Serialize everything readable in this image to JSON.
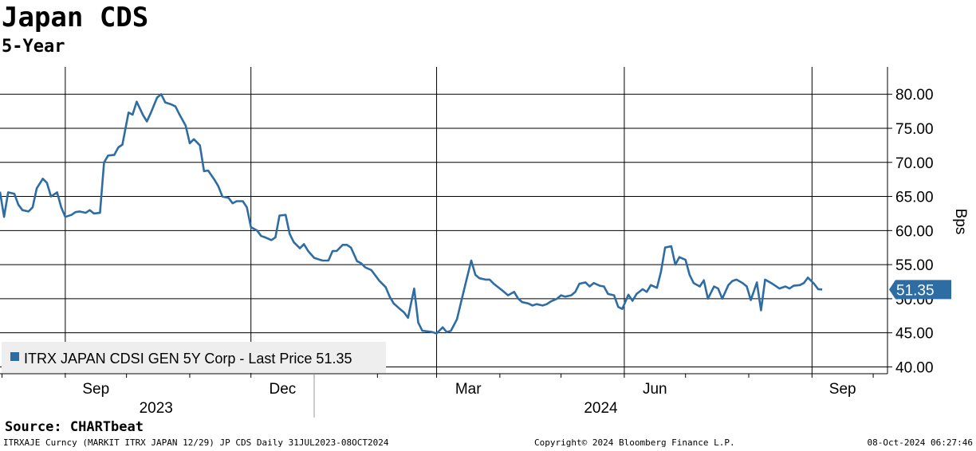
{
  "header": {
    "title": "Japan CDS",
    "subtitle": "5-Year"
  },
  "chart_data": {
    "type": "line",
    "title": "Japan CDS",
    "subtitle": "5-Year",
    "ylabel": "Bps",
    "ylim": [
      39,
      84
    ],
    "yticks": [
      40,
      45,
      50,
      55,
      60,
      65,
      70,
      75,
      80
    ],
    "ytick_labels": [
      "40.00",
      "45.00",
      "50.00",
      "55.00",
      "60.00",
      "65.00",
      "70.00",
      "75.00",
      "80.00"
    ],
    "xlim": [
      "2023-07-31",
      "2024-10-08"
    ],
    "month_ticks": [
      {
        "label": "Sep",
        "date": "2023-09-01"
      },
      {
        "label": "Dec",
        "date": "2023-12-01"
      },
      {
        "label": "Mar",
        "date": "2024-03-01"
      },
      {
        "label": "Jun",
        "date": "2024-06-01"
      },
      {
        "label": "Sep",
        "date": "2024-09-01"
      }
    ],
    "year_labels": [
      {
        "label": "2023",
        "from": "2023-07-31",
        "to": "2023-12-31"
      },
      {
        "label": "2024",
        "from": "2024-01-01",
        "to": "2024-10-08"
      }
    ],
    "grid": true,
    "color": "#2e6ca4",
    "last_price_label": "51.35",
    "legend": {
      "position": "bottom-left",
      "text": "ITRX JAPAN CDSI GEN 5Y Corp - Last Price 51.35"
    },
    "series": [
      {
        "name": "ITRX JAPAN CDSI GEN 5Y Corp",
        "points": [
          [
            "2023-07-31",
            65.7
          ],
          [
            "2023-08-02",
            62.0
          ],
          [
            "2023-08-04",
            65.6
          ],
          [
            "2023-08-07",
            65.4
          ],
          [
            "2023-08-09",
            63.8
          ],
          [
            "2023-08-11",
            63.0
          ],
          [
            "2023-08-14",
            62.8
          ],
          [
            "2023-08-16",
            63.4
          ],
          [
            "2023-08-18",
            66.2
          ],
          [
            "2023-08-21",
            67.6
          ],
          [
            "2023-08-23",
            67.0
          ],
          [
            "2023-08-25",
            65.0
          ],
          [
            "2023-08-28",
            65.6
          ],
          [
            "2023-08-30",
            63.4
          ],
          [
            "2023-09-01",
            62.0
          ],
          [
            "2023-09-04",
            62.3
          ],
          [
            "2023-09-06",
            62.7
          ],
          [
            "2023-09-08",
            62.8
          ],
          [
            "2023-09-11",
            62.6
          ],
          [
            "2023-09-13",
            63.0
          ],
          [
            "2023-09-15",
            62.5
          ],
          [
            "2023-09-18",
            62.6
          ],
          [
            "2023-09-20",
            70.0
          ],
          [
            "2023-09-22",
            71.0
          ],
          [
            "2023-09-25",
            71.1
          ],
          [
            "2023-09-27",
            72.2
          ],
          [
            "2023-09-29",
            72.6
          ],
          [
            "2023-10-02",
            77.3
          ],
          [
            "2023-10-04",
            77.0
          ],
          [
            "2023-10-06",
            78.9
          ],
          [
            "2023-10-09",
            77.0
          ],
          [
            "2023-10-11",
            76.0
          ],
          [
            "2023-10-13",
            77.3
          ],
          [
            "2023-10-16",
            79.5
          ],
          [
            "2023-10-18",
            80.0
          ],
          [
            "2023-10-20",
            78.8
          ],
          [
            "2023-10-23",
            78.5
          ],
          [
            "2023-10-25",
            78.2
          ],
          [
            "2023-10-27",
            77.0
          ],
          [
            "2023-10-30",
            75.4
          ],
          [
            "2023-11-01",
            72.8
          ],
          [
            "2023-11-03",
            73.4
          ],
          [
            "2023-11-06",
            72.5
          ],
          [
            "2023-11-08",
            68.7
          ],
          [
            "2023-11-10",
            68.8
          ],
          [
            "2023-11-13",
            67.5
          ],
          [
            "2023-11-15",
            66.5
          ],
          [
            "2023-11-17",
            65.0
          ],
          [
            "2023-11-20",
            64.8
          ],
          [
            "2023-11-22",
            64.0
          ],
          [
            "2023-11-24",
            64.3
          ],
          [
            "2023-11-27",
            64.3
          ],
          [
            "2023-11-29",
            63.4
          ],
          [
            "2023-12-01",
            60.5
          ],
          [
            "2023-12-04",
            60.0
          ],
          [
            "2023-12-06",
            59.2
          ],
          [
            "2023-12-08",
            59.0
          ],
          [
            "2023-12-11",
            58.6
          ],
          [
            "2023-12-13",
            59.0
          ],
          [
            "2023-12-15",
            62.2
          ],
          [
            "2023-12-18",
            62.3
          ],
          [
            "2023-12-20",
            59.5
          ],
          [
            "2023-12-22",
            58.3
          ],
          [
            "2023-12-25",
            57.4
          ],
          [
            "2023-12-27",
            58.0
          ],
          [
            "2023-12-29",
            57.0
          ],
          [
            "2024-01-01",
            56.0
          ],
          [
            "2024-01-03",
            55.8
          ],
          [
            "2024-01-05",
            55.6
          ],
          [
            "2024-01-08",
            55.6
          ],
          [
            "2024-01-10",
            57.0
          ],
          [
            "2024-01-12",
            57.0
          ],
          [
            "2024-01-15",
            57.9
          ],
          [
            "2024-01-17",
            57.9
          ],
          [
            "2024-01-19",
            57.5
          ],
          [
            "2024-01-22",
            55.5
          ],
          [
            "2024-01-24",
            55.2
          ],
          [
            "2024-01-26",
            54.6
          ],
          [
            "2024-01-29",
            54.2
          ],
          [
            "2024-01-31",
            53.4
          ],
          [
            "2024-02-02",
            52.6
          ],
          [
            "2024-02-05",
            51.7
          ],
          [
            "2024-02-07",
            50.3
          ],
          [
            "2024-02-09",
            49.3
          ],
          [
            "2024-02-12",
            48.5
          ],
          [
            "2024-02-14",
            48.0
          ],
          [
            "2024-02-16",
            47.2
          ],
          [
            "2024-02-19",
            51.5
          ],
          [
            "2024-02-21",
            46.5
          ],
          [
            "2024-02-23",
            45.3
          ],
          [
            "2024-02-26",
            45.2
          ],
          [
            "2024-02-28",
            45.1
          ],
          [
            "2024-03-01",
            44.9
          ],
          [
            "2024-03-04",
            45.8
          ],
          [
            "2024-03-06",
            45.1
          ],
          [
            "2024-03-08",
            45.3
          ],
          [
            "2024-03-11",
            47.0
          ],
          [
            "2024-03-13",
            49.5
          ],
          [
            "2024-03-15",
            52.0
          ],
          [
            "2024-03-18",
            55.6
          ],
          [
            "2024-03-20",
            53.5
          ],
          [
            "2024-03-22",
            53.0
          ],
          [
            "2024-03-25",
            52.8
          ],
          [
            "2024-03-27",
            52.8
          ],
          [
            "2024-03-29",
            52.2
          ],
          [
            "2024-04-01",
            51.5
          ],
          [
            "2024-04-03",
            51.0
          ],
          [
            "2024-04-05",
            50.5
          ],
          [
            "2024-04-08",
            51.0
          ],
          [
            "2024-04-10",
            50.0
          ],
          [
            "2024-04-12",
            49.5
          ],
          [
            "2024-04-15",
            49.3
          ],
          [
            "2024-04-17",
            49.0
          ],
          [
            "2024-04-19",
            49.2
          ],
          [
            "2024-04-22",
            49.0
          ],
          [
            "2024-04-24",
            49.2
          ],
          [
            "2024-04-26",
            49.6
          ],
          [
            "2024-04-29",
            50.0
          ],
          [
            "2024-05-01",
            50.5
          ],
          [
            "2024-05-03",
            50.3
          ],
          [
            "2024-05-06",
            50.5
          ],
          [
            "2024-05-08",
            51.0
          ],
          [
            "2024-05-10",
            52.2
          ],
          [
            "2024-05-13",
            52.4
          ],
          [
            "2024-05-15",
            51.8
          ],
          [
            "2024-05-17",
            52.3
          ],
          [
            "2024-05-20",
            51.9
          ],
          [
            "2024-05-22",
            51.8
          ],
          [
            "2024-05-24",
            50.7
          ],
          [
            "2024-05-27",
            50.5
          ],
          [
            "2024-05-29",
            48.8
          ],
          [
            "2024-05-31",
            48.5
          ],
          [
            "2024-06-03",
            50.6
          ],
          [
            "2024-06-05",
            49.7
          ],
          [
            "2024-06-07",
            50.7
          ],
          [
            "2024-06-10",
            51.4
          ],
          [
            "2024-06-12",
            51.0
          ],
          [
            "2024-06-14",
            52.0
          ],
          [
            "2024-06-17",
            51.6
          ],
          [
            "2024-06-19",
            54.0
          ],
          [
            "2024-06-21",
            57.5
          ],
          [
            "2024-06-24",
            57.7
          ],
          [
            "2024-06-26",
            55.0
          ],
          [
            "2024-06-28",
            56.1
          ],
          [
            "2024-07-01",
            55.7
          ],
          [
            "2024-07-03",
            53.5
          ],
          [
            "2024-07-05",
            52.3
          ],
          [
            "2024-07-08",
            51.8
          ],
          [
            "2024-07-10",
            52.7
          ],
          [
            "2024-07-12",
            50.0
          ],
          [
            "2024-07-15",
            51.8
          ],
          [
            "2024-07-17",
            51.5
          ],
          [
            "2024-07-19",
            50.0
          ],
          [
            "2024-07-22",
            52.0
          ],
          [
            "2024-07-24",
            52.6
          ],
          [
            "2024-07-26",
            52.8
          ],
          [
            "2024-07-29",
            52.3
          ],
          [
            "2024-07-31",
            51.8
          ],
          [
            "2024-08-02",
            49.8
          ],
          [
            "2024-08-05",
            52.4
          ],
          [
            "2024-08-07",
            48.3
          ],
          [
            "2024-08-09",
            52.8
          ],
          [
            "2024-08-12",
            52.3
          ],
          [
            "2024-08-14",
            51.9
          ],
          [
            "2024-08-16",
            51.5
          ],
          [
            "2024-08-19",
            51.8
          ],
          [
            "2024-08-21",
            51.5
          ],
          [
            "2024-08-23",
            51.9
          ],
          [
            "2024-08-26",
            52.0
          ],
          [
            "2024-08-28",
            52.3
          ],
          [
            "2024-08-30",
            53.1
          ],
          [
            "2024-09-02",
            52.2
          ],
          [
            "2024-09-04",
            51.4
          ],
          [
            "2024-09-06",
            51.35
          ]
        ]
      }
    ]
  },
  "footer": {
    "source": "Source: CHARTbeat",
    "security": "ITRXAJE Curncy (MARKIT ITRX JAPAN 12/29) JP CDS  Daily 31JUL2023-08OCT2024",
    "copyright": "Copyright© 2024 Bloomberg Finance L.P.",
    "timestamp": "08-Oct-2024 06:27:46"
  }
}
